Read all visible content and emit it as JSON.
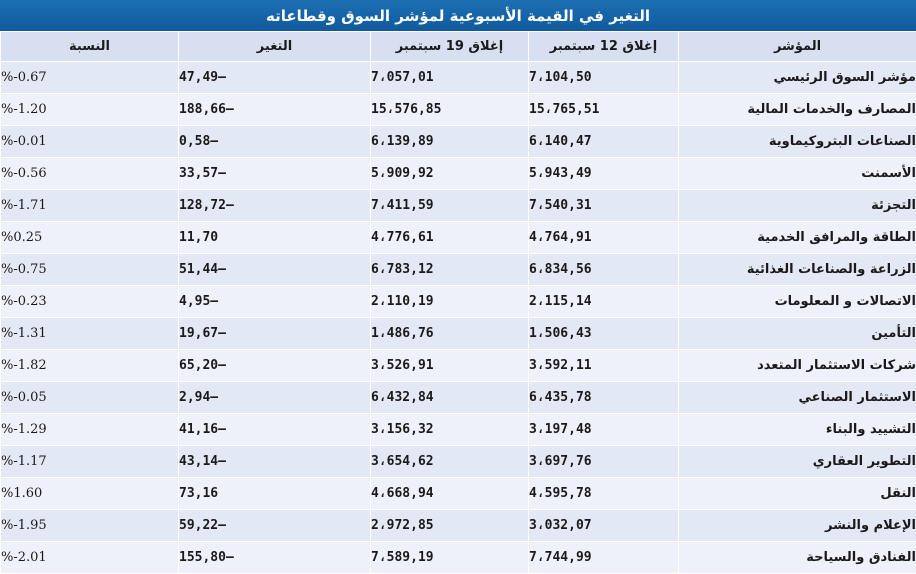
{
  "title": "التغير في القيمة الأسبوعية لمؤشر السوق وقطاعاته",
  "headers": {
    "name": "المؤشر",
    "close_12": "إغلاق 12 سبتمبر",
    "close_19": "إغلاق 19 سبتمبر",
    "change": "التغير",
    "percent": "النسبة"
  },
  "colors": {
    "title_bg": "#1565a8",
    "header_bg": "#d8dff0",
    "row_bg": "#e3e8f5"
  },
  "rows": [
    {
      "name": "مؤشر السوق الرئيسي",
      "close_12": "7،104,50",
      "close_19": "7،057,01",
      "change": "47,49–",
      "percent": "%-0.67"
    },
    {
      "name": "المصارف والخدمات المالية",
      "close_12": "15،765,51",
      "close_19": "15،576,85",
      "change": "188,66–",
      "percent": "%-1.20"
    },
    {
      "name": "الصناعات البتروكيماوية",
      "close_12": "6،140,47",
      "close_19": "6،139,89",
      "change": "0,58–",
      "percent": "%-0.01"
    },
    {
      "name": "الأسمنت",
      "close_12": "5،943,49",
      "close_19": "5،909,92",
      "change": "33,57–",
      "percent": "%-0.56"
    },
    {
      "name": "التجزئة",
      "close_12": "7،540,31",
      "close_19": "7،411,59",
      "change": "128,72–",
      "percent": "%-1.71"
    },
    {
      "name": "الطاقة والمرافق الخدمية",
      "close_12": "4،764,91",
      "close_19": "4،776,61",
      "change": "11,70",
      "percent": "%0.25"
    },
    {
      "name": "الزراعة والصناعات الغذائية",
      "close_12": "6،834,56",
      "close_19": "6،783,12",
      "change": "51,44–",
      "percent": "%-0.75"
    },
    {
      "name": "الاتصالات و المعلومات",
      "close_12": "2،115,14",
      "close_19": "2،110,19",
      "change": "4,95–",
      "percent": "%-0.23"
    },
    {
      "name": "التأمين",
      "close_12": "1،506,43",
      "close_19": "1،486,76",
      "change": "19,67–",
      "percent": "%-1.31"
    },
    {
      "name": "شركات الاستثمار المتعدد",
      "close_12": "3،592,11",
      "close_19": "3،526,91",
      "change": "65,20–",
      "percent": "%-1.82"
    },
    {
      "name": "الاستثمار الصناعي",
      "close_12": "6،435,78",
      "close_19": "6،432,84",
      "change": "2,94–",
      "percent": "%-0.05"
    },
    {
      "name": "التشييد والبناء",
      "close_12": "3،197,48",
      "close_19": "3،156,32",
      "change": "41,16–",
      "percent": "%-1.29"
    },
    {
      "name": "التطوير العقاري",
      "close_12": "3،697,76",
      "close_19": "3،654,62",
      "change": "43,14–",
      "percent": "%-1.17"
    },
    {
      "name": "النقل",
      "close_12": "4،595,78",
      "close_19": "4،668,94",
      "change": "73,16",
      "percent": "%1.60"
    },
    {
      "name": "الإعلام والنشر",
      "close_12": "3،032,07",
      "close_19": "2،972,85",
      "change": "59,22–",
      "percent": "%-1.95"
    },
    {
      "name": "الفنادق والسياحة",
      "close_12": "7،744,99",
      "close_19": "7،589,19",
      "change": "155,80–",
      "percent": "%-2.01"
    }
  ]
}
